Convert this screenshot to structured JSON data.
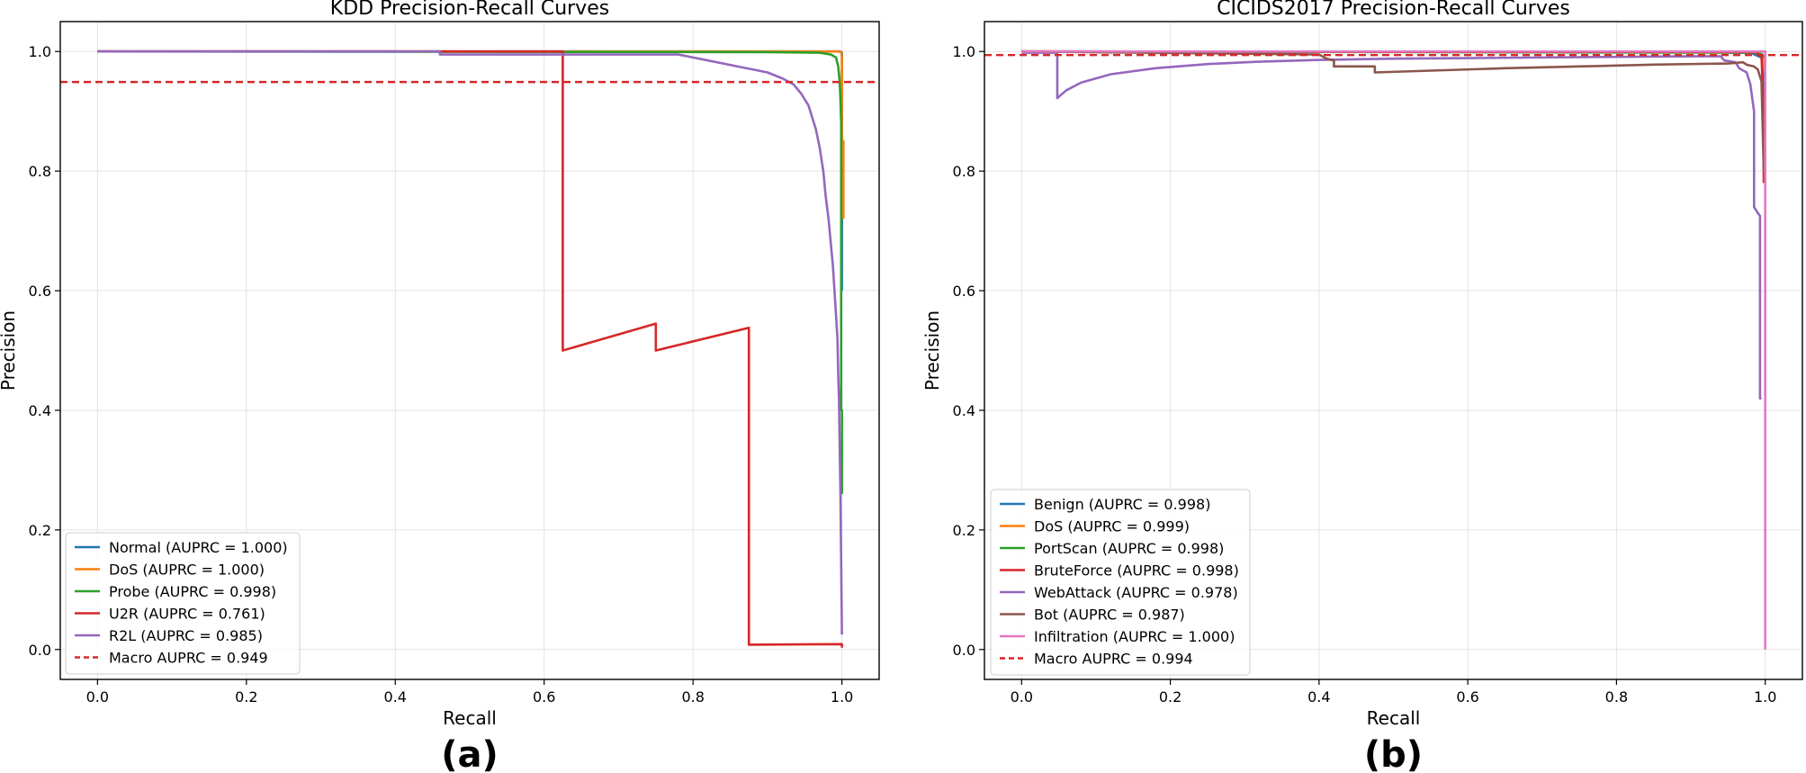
{
  "chart_data": [
    {
      "type": "line",
      "title": "KDD Precision-Recall Curves",
      "xlabel": "Recall",
      "ylabel": "Precision",
      "panel_label": "(a)",
      "xlim": [
        -0.05,
        1.05
      ],
      "ylim": [
        -0.05,
        1.05
      ],
      "xticks": [
        0.0,
        0.2,
        0.4,
        0.6,
        0.8,
        1.0
      ],
      "yticks": [
        0.0,
        0.2,
        0.4,
        0.6,
        0.8,
        1.0
      ],
      "xtick_labels": [
        "0.0",
        "0.2",
        "0.4",
        "0.6",
        "0.8",
        "1.0"
      ],
      "ytick_labels": [
        "0.0",
        "0.2",
        "0.4",
        "0.6",
        "0.8",
        "1.0"
      ],
      "grid": true,
      "legend_position": "lower-left",
      "series": [
        {
          "name": "Normal (AUPRC = 1.000)",
          "color": "#1f77b4",
          "style": "solid",
          "points": [
            [
              0.0,
              1.0
            ],
            [
              0.9,
              1.0
            ],
            [
              0.998,
              1.0
            ],
            [
              0.999,
              0.999
            ],
            [
              1.0,
              0.998
            ],
            [
              1.0,
              0.6
            ]
          ]
        },
        {
          "name": "DoS (AUPRC = 1.000)",
          "color": "#ff7f0e",
          "style": "solid",
          "points": [
            [
              0.0,
              1.0
            ],
            [
              0.995,
              1.0
            ],
            [
              0.999,
              0.999
            ],
            [
              1.0,
              0.99
            ],
            [
              1.0,
              0.85
            ],
            [
              1.002,
              0.85
            ],
            [
              1.002,
              0.72
            ]
          ]
        },
        {
          "name": "Probe (AUPRC = 0.998)",
          "color": "#2ca02c",
          "style": "solid",
          "points": [
            [
              0.0,
              1.0
            ],
            [
              0.9,
              0.999
            ],
            [
              0.97,
              0.998
            ],
            [
              0.985,
              0.995
            ],
            [
              0.992,
              0.99
            ],
            [
              0.995,
              0.975
            ],
            [
              0.997,
              0.95
            ],
            [
              0.998,
              0.92
            ],
            [
              0.999,
              0.88
            ],
            [
              0.999,
              0.4
            ],
            [
              1.0,
              0.4
            ],
            [
              1.0,
              0.26
            ]
          ]
        },
        {
          "name": "U2R (AUPRC = 0.761)",
          "color": "#d62728",
          "style": "solid",
          "points": [
            [
              0.0,
              1.0
            ],
            [
              0.625,
              1.0
            ],
            [
              0.625,
              0.5
            ],
            [
              0.75,
              0.545
            ],
            [
              0.75,
              0.5
            ],
            [
              0.875,
              0.538
            ],
            [
              0.875,
              0.008
            ],
            [
              1.0,
              0.009
            ],
            [
              1.0,
              0.003
            ]
          ]
        },
        {
          "name": "R2L (AUPRC = 0.985)",
          "color": "#9467bd",
          "style": "solid",
          "points": [
            [
              0.0,
              1.0
            ],
            [
              0.46,
              1.0
            ],
            [
              0.46,
              0.995
            ],
            [
              0.78,
              0.995
            ],
            [
              0.8,
              0.99
            ],
            [
              0.82,
              0.985
            ],
            [
              0.84,
              0.98
            ],
            [
              0.86,
              0.975
            ],
            [
              0.88,
              0.97
            ],
            [
              0.9,
              0.965
            ],
            [
              0.92,
              0.955
            ],
            [
              0.935,
              0.945
            ],
            [
              0.945,
              0.93
            ],
            [
              0.955,
              0.91
            ],
            [
              0.96,
              0.89
            ],
            [
              0.965,
              0.87
            ],
            [
              0.97,
              0.84
            ],
            [
              0.975,
              0.8
            ],
            [
              0.978,
              0.76
            ],
            [
              0.982,
              0.72
            ],
            [
              0.985,
              0.68
            ],
            [
              0.988,
              0.64
            ],
            [
              0.99,
              0.6
            ],
            [
              0.992,
              0.56
            ],
            [
              0.994,
              0.52
            ],
            [
              0.995,
              0.46
            ],
            [
              0.996,
              0.42
            ],
            [
              0.998,
              0.26
            ],
            [
              1.0,
              0.025
            ]
          ]
        },
        {
          "name": "Macro AUPRC = 0.949",
          "color": "#d62728",
          "style": "dashed",
          "hline": 0.949
        }
      ]
    },
    {
      "type": "line",
      "title": "CICIDS2017 Precision-Recall Curves",
      "xlabel": "Recall",
      "ylabel": "Precision",
      "panel_label": "(b)",
      "xlim": [
        -0.05,
        1.05
      ],
      "ylim": [
        -0.05,
        1.05
      ],
      "xticks": [
        0.0,
        0.2,
        0.4,
        0.6,
        0.8,
        1.0
      ],
      "yticks": [
        0.0,
        0.2,
        0.4,
        0.6,
        0.8,
        1.0
      ],
      "xtick_labels": [
        "0.0",
        "0.2",
        "0.4",
        "0.6",
        "0.8",
        "1.0"
      ],
      "ytick_labels": [
        "0.0",
        "0.2",
        "0.4",
        "0.6",
        "0.8",
        "1.0"
      ],
      "grid": true,
      "legend_position": "lower-left",
      "series": [
        {
          "name": "Benign (AUPRC = 0.998)",
          "color": "#1f77b4",
          "style": "solid",
          "points": [
            [
              0.0,
              1.0
            ],
            [
              0.9,
              0.999
            ],
            [
              0.98,
              0.998
            ],
            [
              0.995,
              0.99
            ],
            [
              0.998,
              0.95
            ],
            [
              1.0,
              0.8
            ]
          ]
        },
        {
          "name": "DoS (AUPRC = 0.999)",
          "color": "#ff7f0e",
          "style": "solid",
          "points": [
            [
              0.0,
              1.0
            ],
            [
              0.97,
              0.999
            ],
            [
              0.99,
              0.998
            ],
            [
              0.997,
              0.99
            ],
            [
              0.999,
              0.97
            ]
          ]
        },
        {
          "name": "PortScan (AUPRC = 0.998)",
          "color": "#2ca02c",
          "style": "solid",
          "points": [
            [
              0.0,
              1.0
            ],
            [
              0.99,
              0.998
            ],
            [
              0.996,
              0.995
            ],
            [
              0.998,
              0.99
            ]
          ]
        },
        {
          "name": "BruteForce (AUPRC = 0.998)",
          "color": "#d62728",
          "style": "solid",
          "points": [
            [
              0.0,
              1.0
            ],
            [
              0.99,
              0.999
            ],
            [
              0.99,
              0.995
            ],
            [
              0.995,
              0.993
            ],
            [
              0.996,
              0.96
            ],
            [
              0.998,
              0.9
            ],
            [
              0.998,
              0.78
            ]
          ]
        },
        {
          "name": "WebAttack (AUPRC = 0.978)",
          "color": "#9467bd",
          "style": "solid",
          "points": [
            [
              0.0,
              0.998
            ],
            [
              0.048,
              0.998
            ],
            [
              0.048,
              0.922
            ],
            [
              0.06,
              0.935
            ],
            [
              0.08,
              0.948
            ],
            [
              0.12,
              0.962
            ],
            [
              0.18,
              0.972
            ],
            [
              0.25,
              0.979
            ],
            [
              0.32,
              0.983
            ],
            [
              0.4,
              0.986
            ],
            [
              0.5,
              0.988
            ],
            [
              0.6,
              0.989
            ],
            [
              0.7,
              0.99
            ],
            [
              0.8,
              0.991
            ],
            [
              0.9,
              0.992
            ],
            [
              0.94,
              0.992
            ],
            [
              0.945,
              0.985
            ],
            [
              0.96,
              0.982
            ],
            [
              0.965,
              0.972
            ],
            [
              0.975,
              0.965
            ],
            [
              0.98,
              0.945
            ],
            [
              0.985,
              0.9
            ],
            [
              0.985,
              0.74
            ],
            [
              0.99,
              0.73
            ],
            [
              0.993,
              0.725
            ],
            [
              0.993,
              0.42
            ],
            [
              0.995,
              0.42
            ]
          ]
        },
        {
          "name": "Bot (AUPRC = 0.987)",
          "color": "#8c564b",
          "style": "solid",
          "points": [
            [
              0.0,
              1.0
            ],
            [
              0.4,
              0.995
            ],
            [
              0.41,
              0.988
            ],
            [
              0.42,
              0.985
            ],
            [
              0.42,
              0.975
            ],
            [
              0.475,
              0.975
            ],
            [
              0.475,
              0.965
            ],
            [
              0.55,
              0.968
            ],
            [
              0.65,
              0.972
            ],
            [
              0.75,
              0.975
            ],
            [
              0.85,
              0.978
            ],
            [
              0.95,
              0.98
            ],
            [
              0.97,
              0.982
            ],
            [
              0.975,
              0.978
            ],
            [
              0.985,
              0.975
            ],
            [
              0.99,
              0.97
            ],
            [
              0.995,
              0.95
            ],
            [
              0.998,
              0.8
            ]
          ]
        },
        {
          "name": "Infiltration (AUPRC = 1.000)",
          "color": "#e377c2",
          "style": "solid",
          "points": [
            [
              0.0,
              1.0
            ],
            [
              1.0,
              1.0
            ],
            [
              1.0,
              0.0
            ]
          ]
        },
        {
          "name": "Macro AUPRC = 0.994",
          "color": "#d62728",
          "style": "dashed",
          "hline": 0.994
        }
      ]
    }
  ]
}
